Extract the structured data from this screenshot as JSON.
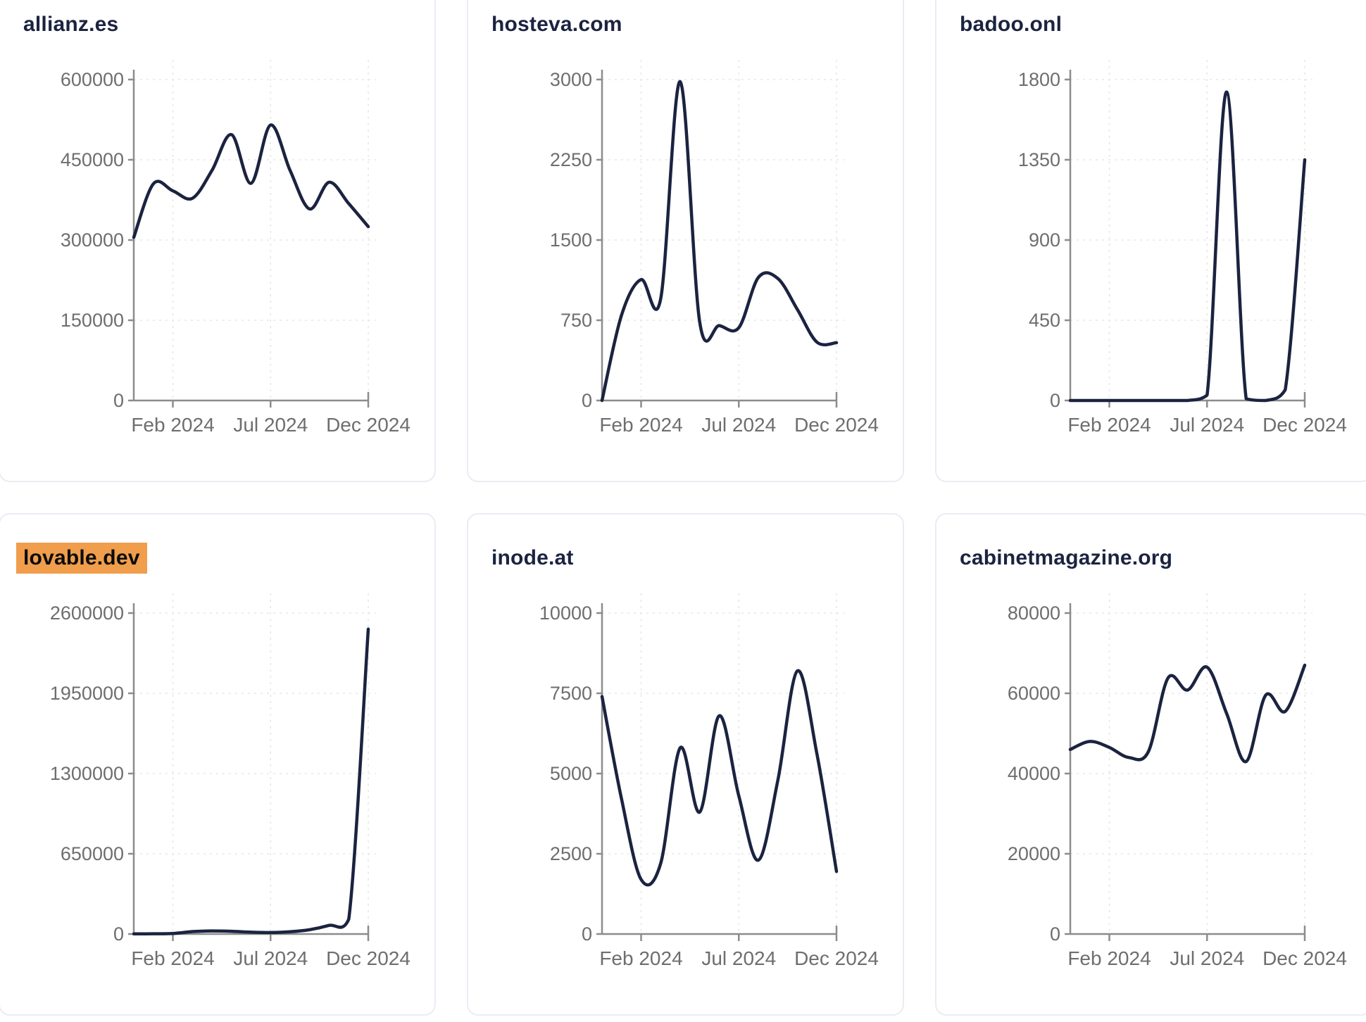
{
  "page": {
    "background": "#ffffff",
    "layout": "3x2-grid-of-domain-traffic-charts"
  },
  "style": {
    "line_color": "#1b2340",
    "title_color": "#1b2340",
    "highlight_color": "#f09d4c",
    "highlight_text_color": "#0b0b0b",
    "axis_color": "#8c8c8c",
    "tick_label_color": "#6e6e6e",
    "gridline_color": "#e7e7e7",
    "card_border_color": "#e9edf3",
    "card_background": "#ffffff"
  },
  "chart_data": [
    {
      "title": "allianz.es",
      "highlighted": false,
      "type": "line",
      "x": [
        "2023-12",
        "2024-01",
        "2024-02",
        "2024-03",
        "2024-04",
        "2024-05",
        "2024-06",
        "2024-07",
        "2024-08",
        "2024-09",
        "2024-10",
        "2024-11",
        "2024-12"
      ],
      "values": [
        305000,
        405000,
        392000,
        378000,
        430000,
        497000,
        406000,
        515000,
        430000,
        358000,
        408000,
        368000,
        325000
      ],
      "yticks": [
        0,
        150000,
        300000,
        450000,
        600000
      ],
      "ylim": [
        0,
        620000
      ],
      "xticks": [
        {
          "label": "Feb 2024",
          "x": "2024-02"
        },
        {
          "label": "Jul 2024",
          "x": "2024-07"
        },
        {
          "label": "Dec 2024",
          "x": "2024-12"
        }
      ],
      "grid": "dashed",
      "legend": "none"
    },
    {
      "title": "hosteva.com",
      "highlighted": false,
      "type": "line",
      "x": [
        "2023-12",
        "2024-01",
        "2024-02",
        "2024-03",
        "2024-04",
        "2024-05",
        "2024-06",
        "2024-07",
        "2024-08",
        "2024-09",
        "2024-10",
        "2024-11",
        "2024-12"
      ],
      "values": [
        0,
        800,
        1130,
        950,
        2980,
        730,
        700,
        680,
        1150,
        1140,
        850,
        545,
        540
      ],
      "yticks": [
        0,
        750,
        1500,
        2250,
        3000
      ],
      "ylim": [
        0,
        3100
      ],
      "xticks": [
        {
          "label": "Feb 2024",
          "x": "2024-02"
        },
        {
          "label": "Jul 2024",
          "x": "2024-07"
        },
        {
          "label": "Dec 2024",
          "x": "2024-12"
        }
      ],
      "grid": "dashed",
      "legend": "none"
    },
    {
      "title": "badoo.onl",
      "highlighted": false,
      "type": "line",
      "x": [
        "2023-12",
        "2024-01",
        "2024-02",
        "2024-03",
        "2024-04",
        "2024-05",
        "2024-06",
        "2024-07",
        "2024-08",
        "2024-09",
        "2024-10",
        "2024-11",
        "2024-12"
      ],
      "values": [
        0,
        0,
        0,
        0,
        0,
        0,
        0,
        30,
        1730,
        10,
        0,
        60,
        1350
      ],
      "yticks": [
        0,
        450,
        900,
        1350,
        1800
      ],
      "ylim": [
        0,
        1860
      ],
      "xticks": [
        {
          "label": "Feb 2024",
          "x": "2024-02"
        },
        {
          "label": "Jul 2024",
          "x": "2024-07"
        },
        {
          "label": "Dec 2024",
          "x": "2024-12"
        }
      ],
      "grid": "dashed",
      "legend": "none"
    },
    {
      "title": "lovable.dev",
      "highlighted": true,
      "type": "line",
      "x": [
        "2023-12",
        "2024-01",
        "2024-02",
        "2024-03",
        "2024-04",
        "2024-05",
        "2024-06",
        "2024-07",
        "2024-08",
        "2024-09",
        "2024-10",
        "2024-11",
        "2024-12"
      ],
      "values": [
        1000,
        2000,
        4000,
        20000,
        25000,
        22000,
        15000,
        12000,
        18000,
        35000,
        70000,
        120000,
        2470000
      ],
      "yticks": [
        0,
        650000,
        1300000,
        1950000,
        2600000
      ],
      "ylim": [
        0,
        2690000
      ],
      "xticks": [
        {
          "label": "Feb 2024",
          "x": "2024-02"
        },
        {
          "label": "Jul 2024",
          "x": "2024-07"
        },
        {
          "label": "Dec 2024",
          "x": "2024-12"
        }
      ],
      "grid": "dashed",
      "legend": "none"
    },
    {
      "title": "inode.at",
      "highlighted": false,
      "type": "line",
      "x": [
        "2023-12",
        "2024-01",
        "2024-02",
        "2024-03",
        "2024-04",
        "2024-05",
        "2024-06",
        "2024-07",
        "2024-08",
        "2024-09",
        "2024-10",
        "2024-11",
        "2024-12"
      ],
      "values": [
        7400,
        4200,
        1700,
        2200,
        5800,
        3800,
        6800,
        4300,
        2300,
        4800,
        8200,
        5600,
        1950
      ],
      "yticks": [
        0,
        2500,
        5000,
        7500,
        10000
      ],
      "ylim": [
        0,
        10350
      ],
      "xticks": [
        {
          "label": "Feb 2024",
          "x": "2024-02"
        },
        {
          "label": "Jul 2024",
          "x": "2024-07"
        },
        {
          "label": "Dec 2024",
          "x": "2024-12"
        }
      ],
      "grid": "dashed",
      "legend": "none"
    },
    {
      "title": "cabinetmagazine.org",
      "highlighted": false,
      "type": "line",
      "x": [
        "2023-12",
        "2024-01",
        "2024-02",
        "2024-03",
        "2024-04",
        "2024-05",
        "2024-06",
        "2024-07",
        "2024-08",
        "2024-09",
        "2024-10",
        "2024-11",
        "2024-12"
      ],
      "values": [
        46000,
        48000,
        46500,
        44000,
        45500,
        63800,
        60800,
        66500,
        55000,
        43000,
        59500,
        55500,
        67000
      ],
      "yticks": [
        0,
        20000,
        40000,
        60000,
        80000
      ],
      "ylim": [
        0,
        82800
      ],
      "xticks": [
        {
          "label": "Feb 2024",
          "x": "2024-02"
        },
        {
          "label": "Jul 2024",
          "x": "2024-07"
        },
        {
          "label": "Dec 2024",
          "x": "2024-12"
        }
      ],
      "grid": "dashed",
      "legend": "none"
    }
  ]
}
